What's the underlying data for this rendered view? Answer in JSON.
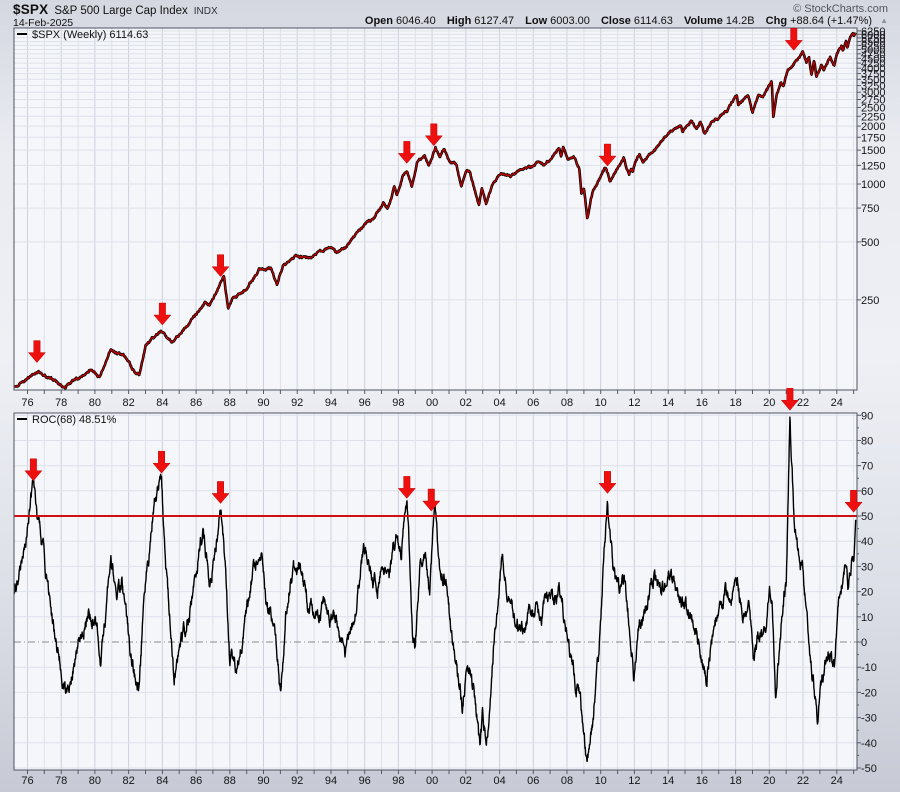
{
  "header": {
    "symbol": "$SPX",
    "name": "S&P 500 Large Cap Index",
    "exchange": "INDX",
    "date": "14-Feb-2025",
    "copyright": "© StockCharts.com",
    "quote": {
      "open_label": "Open",
      "open": "6046.40",
      "high_label": "High",
      "high": "6127.47",
      "low_label": "Low",
      "low": "6003.00",
      "close_label": "Close",
      "close": "6114.63",
      "volume_label": "Volume",
      "volume": "14.2B",
      "chg_label": "Chg",
      "chg": "+88.64 (+1.47%)",
      "chg_direction": "up",
      "arrow_glyph": "▲"
    }
  },
  "price_panel": {
    "legend": "$SPX (Weekly) 6114.63"
  },
  "roc_panel": {
    "legend": "ROC(68) 48.51%",
    "current_value": 48.51,
    "signal_level": 50
  },
  "colors": {
    "plot_bg": "#f5f6fa",
    "grid": "#dde1ea",
    "grid_strong": "#ccd1df",
    "border": "#4f5462",
    "price_outer": "#000000",
    "price_inner": "#cc0000",
    "roc_line": "#000000",
    "signal_line": "#cc1111",
    "zero_line": "#8a8a8a",
    "arrow": "#ee0f0f",
    "tick": "#555b66",
    "text": "#15151a"
  },
  "chart_data": [
    {
      "type": "line",
      "name": "$SPX Weekly close",
      "yscale": "log",
      "xlim": [
        1975.2,
        2025.2
      ],
      "ylim": [
        85,
        6470
      ],
      "yticks": [
        250,
        500,
        750,
        1000,
        1250,
        1500,
        1750,
        2000,
        2250,
        2500,
        2750,
        3000,
        3250,
        3500,
        3750,
        4000,
        4250,
        4500,
        4750,
        5000,
        5250,
        5500,
        5750,
        6000,
        6250
      ],
      "xtick_years": [
        1976,
        1978,
        1980,
        1982,
        1984,
        1986,
        1988,
        1990,
        1992,
        1994,
        1996,
        1998,
        2000,
        2002,
        2004,
        2006,
        2008,
        2010,
        2012,
        2014,
        2016,
        2018,
        2020,
        2022,
        2024
      ],
      "xtick_labels": [
        "76",
        "78",
        "80",
        "82",
        "84",
        "86",
        "88",
        "90",
        "92",
        "94",
        "96",
        "98",
        "00",
        "02",
        "04",
        "06",
        "08",
        "10",
        "12",
        "14",
        "16",
        "18",
        "20",
        "22",
        "24"
      ],
      "grid_years": [
        1976,
        2025
      ],
      "points": [
        [
          1975.2,
          88
        ],
        [
          1975.7,
          93
        ],
        [
          1976.1,
          99
        ],
        [
          1976.6,
          107
        ],
        [
          1977.2,
          99
        ],
        [
          1977.7,
          95
        ],
        [
          1978.25,
          87
        ],
        [
          1978.8,
          97
        ],
        [
          1979.3,
          101
        ],
        [
          1979.8,
          111
        ],
        [
          1980.28,
          100
        ],
        [
          1980.95,
          140
        ],
        [
          1981.3,
          131
        ],
        [
          1981.75,
          129
        ],
        [
          1982.2,
          110
        ],
        [
          1982.62,
          102
        ],
        [
          1983.0,
          145
        ],
        [
          1983.9,
          172
        ],
        [
          1984.55,
          148
        ],
        [
          1985.1,
          168
        ],
        [
          1985.9,
          205
        ],
        [
          1986.55,
          245
        ],
        [
          1986.8,
          235
        ],
        [
          1987.65,
          336
        ],
        [
          1987.9,
          224
        ],
        [
          1988.2,
          258
        ],
        [
          1988.9,
          278
        ],
        [
          1989.75,
          359
        ],
        [
          1990.45,
          368
        ],
        [
          1990.8,
          296
        ],
        [
          1991.15,
          375
        ],
        [
          1991.95,
          417
        ],
        [
          1992.7,
          412
        ],
        [
          1993.6,
          455
        ],
        [
          1994.1,
          480
        ],
        [
          1994.35,
          438
        ],
        [
          1994.9,
          461
        ],
        [
          1995.5,
          545
        ],
        [
          1996.05,
          620
        ],
        [
          1996.55,
          665
        ],
        [
          1997.1,
          790
        ],
        [
          1997.35,
          740
        ],
        [
          1997.75,
          955
        ],
        [
          1997.9,
          880
        ],
        [
          1998.25,
          1100
        ],
        [
          1998.5,
          1190
        ],
        [
          1998.8,
          960
        ],
        [
          1999.1,
          1300
        ],
        [
          1999.55,
          1420
        ],
        [
          1999.8,
          1250
        ],
        [
          2000.2,
          1527
        ],
        [
          2000.45,
          1360
        ],
        [
          2000.7,
          1520
        ],
        [
          2001.05,
          1300
        ],
        [
          2001.45,
          1250
        ],
        [
          2001.73,
          965
        ],
        [
          2002.0,
          1160
        ],
        [
          2002.25,
          1150
        ],
        [
          2002.78,
          776
        ],
        [
          2002.95,
          930
        ],
        [
          2003.2,
          800
        ],
        [
          2003.6,
          1000
        ],
        [
          2004.1,
          1150
        ],
        [
          2004.65,
          1100
        ],
        [
          2005.2,
          1200
        ],
        [
          2005.85,
          1230
        ],
        [
          2006.35,
          1290
        ],
        [
          2006.6,
          1240
        ],
        [
          2007.25,
          1440
        ],
        [
          2007.55,
          1553
        ],
        [
          2007.65,
          1411
        ],
        [
          2007.78,
          1565
        ],
        [
          2008.05,
          1330
        ],
        [
          2008.4,
          1400
        ],
        [
          2008.72,
          1200
        ],
        [
          2008.85,
          900
        ],
        [
          2009.0,
          930
        ],
        [
          2009.2,
          676
        ],
        [
          2009.55,
          940
        ],
        [
          2010.05,
          1120
        ],
        [
          2010.3,
          1217
        ],
        [
          2010.55,
          1030
        ],
        [
          2010.95,
          1185
        ],
        [
          2011.35,
          1363
        ],
        [
          2011.68,
          1120
        ],
        [
          2011.8,
          1190
        ],
        [
          2011.88,
          1140
        ],
        [
          2012.05,
          1290
        ],
        [
          2012.3,
          1420
        ],
        [
          2012.52,
          1310
        ],
        [
          2013.0,
          1460
        ],
        [
          2013.6,
          1650
        ],
        [
          2014.0,
          1840
        ],
        [
          2014.75,
          2010
        ],
        [
          2014.85,
          1880
        ],
        [
          2015.4,
          2120
        ],
        [
          2015.68,
          1870
        ],
        [
          2015.9,
          2100
        ],
        [
          2016.15,
          1829
        ],
        [
          2016.55,
          2100
        ],
        [
          2016.9,
          2180
        ],
        [
          2017.5,
          2430
        ],
        [
          2018.07,
          2873
        ],
        [
          2018.16,
          2580
        ],
        [
          2018.4,
          2720
        ],
        [
          2018.73,
          2930
        ],
        [
          2019.0,
          2351
        ],
        [
          2019.35,
          2900
        ],
        [
          2019.62,
          2850
        ],
        [
          2019.97,
          3240
        ],
        [
          2020.14,
          3386
        ],
        [
          2020.24,
          2237
        ],
        [
          2020.45,
          2950
        ],
        [
          2020.7,
          3400
        ],
        [
          2020.85,
          3270
        ],
        [
          2021.1,
          3900
        ],
        [
          2021.55,
          4350
        ],
        [
          2021.72,
          4550
        ],
        [
          2021.85,
          4620
        ],
        [
          2022.0,
          4796
        ],
        [
          2022.2,
          4250
        ],
        [
          2022.35,
          4580
        ],
        [
          2022.5,
          3670
        ],
        [
          2022.65,
          4300
        ],
        [
          2022.8,
          3577
        ],
        [
          2023.1,
          4150
        ],
        [
          2023.22,
          3950
        ],
        [
          2023.6,
          4580
        ],
        [
          2023.85,
          4120
        ],
        [
          2024.0,
          4770
        ],
        [
          2024.28,
          5250
        ],
        [
          2024.36,
          4960
        ],
        [
          2024.55,
          5660
        ],
        [
          2024.63,
          5190
        ],
        [
          2024.85,
          5870
        ],
        [
          2024.95,
          6090
        ],
        [
          2025.02,
          5850
        ],
        [
          2025.12,
          6114.63
        ]
      ],
      "arrows": [
        [
          1976.56,
          118
        ],
        [
          1984.0,
          185
        ],
        [
          1987.45,
          330
        ],
        [
          1998.5,
          1280
        ],
        [
          2000.1,
          1580
        ],
        [
          2010.4,
          1240
        ],
        [
          2021.45,
          4950
        ]
      ]
    },
    {
      "type": "line",
      "name": "ROC(68)",
      "yscale": "linear",
      "xlim": [
        1975.2,
        2025.2
      ],
      "ylim": [
        -50.8,
        90.9
      ],
      "yticks": [
        90,
        80,
        70,
        60,
        50,
        40,
        30,
        20,
        10,
        0,
        -10,
        -20,
        -30,
        -40,
        -50
      ],
      "signal_line": {
        "value": 50,
        "color": "#cc1111"
      },
      "zero_line": {
        "value": 0,
        "style": "dash-dot",
        "color": "#8a8a8a"
      },
      "points": [
        [
          1975.2,
          18
        ],
        [
          1975.6,
          30
        ],
        [
          1976.0,
          45
        ],
        [
          1976.35,
          62
        ],
        [
          1976.6,
          48
        ],
        [
          1976.9,
          38
        ],
        [
          1977.3,
          15
        ],
        [
          1977.8,
          -5
        ],
        [
          1978.3,
          -19
        ],
        [
          1978.75,
          -8
        ],
        [
          1979.1,
          4
        ],
        [
          1979.6,
          10
        ],
        [
          1980.1,
          6
        ],
        [
          1980.35,
          -5
        ],
        [
          1980.95,
          32
        ],
        [
          1981.3,
          18
        ],
        [
          1981.6,
          24
        ],
        [
          1982.1,
          -6
        ],
        [
          1982.6,
          -20
        ],
        [
          1982.95,
          18
        ],
        [
          1983.5,
          55
        ],
        [
          1983.95,
          65
        ],
        [
          1984.2,
          30
        ],
        [
          1984.7,
          -15
        ],
        [
          1985.1,
          -2
        ],
        [
          1985.6,
          12
        ],
        [
          1986.1,
          32
        ],
        [
          1986.4,
          42
        ],
        [
          1986.85,
          24
        ],
        [
          1987.1,
          36
        ],
        [
          1987.45,
          53
        ],
        [
          1987.75,
          30
        ],
        [
          1988.0,
          -8
        ],
        [
          1988.4,
          -12
        ],
        [
          1988.9,
          8
        ],
        [
          1989.4,
          26
        ],
        [
          1989.85,
          34
        ],
        [
          1990.2,
          14
        ],
        [
          1990.65,
          8
        ],
        [
          1991.0,
          -18
        ],
        [
          1991.3,
          8
        ],
        [
          1991.6,
          26
        ],
        [
          1992.05,
          33
        ],
        [
          1992.6,
          14
        ],
        [
          1993.1,
          12
        ],
        [
          1993.7,
          17
        ],
        [
          1994.3,
          7
        ],
        [
          1994.9,
          -4
        ],
        [
          1995.4,
          14
        ],
        [
          1995.95,
          35
        ],
        [
          1996.45,
          29
        ],
        [
          1996.75,
          22
        ],
        [
          1997.05,
          34
        ],
        [
          1997.45,
          27
        ],
        [
          1997.85,
          44
        ],
        [
          1998.15,
          38
        ],
        [
          1998.5,
          55
        ],
        [
          1998.85,
          5
        ],
        [
          1999.0,
          -2
        ],
        [
          1999.3,
          30
        ],
        [
          1999.65,
          34
        ],
        [
          1999.85,
          20
        ],
        [
          2000.15,
          50
        ],
        [
          2000.5,
          24
        ],
        [
          2000.85,
          28
        ],
        [
          2001.15,
          2
        ],
        [
          2001.45,
          -10
        ],
        [
          2001.8,
          -26
        ],
        [
          2002.05,
          -8
        ],
        [
          2002.35,
          -14
        ],
        [
          2002.85,
          -43
        ],
        [
          2003.0,
          -30
        ],
        [
          2003.2,
          -36
        ],
        [
          2003.4,
          -26
        ],
        [
          2003.7,
          2
        ],
        [
          2004.15,
          35
        ],
        [
          2004.6,
          16
        ],
        [
          2005.0,
          6
        ],
        [
          2005.5,
          6
        ],
        [
          2005.95,
          12
        ],
        [
          2006.4,
          9
        ],
        [
          2006.9,
          16
        ],
        [
          2007.3,
          17
        ],
        [
          2007.65,
          20
        ],
        [
          2007.95,
          6
        ],
        [
          2008.3,
          -10
        ],
        [
          2008.7,
          -18
        ],
        [
          2009.0,
          -42
        ],
        [
          2009.2,
          -48
        ],
        [
          2009.5,
          -36
        ],
        [
          2009.9,
          -4
        ],
        [
          2010.15,
          32
        ],
        [
          2010.4,
          57
        ],
        [
          2010.75,
          28
        ],
        [
          2011.05,
          20
        ],
        [
          2011.45,
          24
        ],
        [
          2011.95,
          -10
        ],
        [
          2012.3,
          6
        ],
        [
          2012.7,
          14
        ],
        [
          2013.1,
          26
        ],
        [
          2013.6,
          21
        ],
        [
          2014.05,
          28
        ],
        [
          2014.6,
          17
        ],
        [
          2015.0,
          14
        ],
        [
          2015.45,
          10
        ],
        [
          2015.9,
          0
        ],
        [
          2016.25,
          -12
        ],
        [
          2016.7,
          4
        ],
        [
          2017.0,
          13
        ],
        [
          2017.4,
          18
        ],
        [
          2017.9,
          21
        ],
        [
          2018.1,
          26
        ],
        [
          2018.4,
          11
        ],
        [
          2018.75,
          17
        ],
        [
          2019.05,
          -8
        ],
        [
          2019.4,
          6
        ],
        [
          2019.7,
          1
        ],
        [
          2020.0,
          21
        ],
        [
          2020.18,
          12
        ],
        [
          2020.38,
          -24
        ],
        [
          2020.75,
          12
        ],
        [
          2021.0,
          24
        ],
        [
          2021.22,
          90
        ],
        [
          2021.5,
          40
        ],
        [
          2021.75,
          32
        ],
        [
          2022.0,
          27
        ],
        [
          2022.25,
          6
        ],
        [
          2022.55,
          -14
        ],
        [
          2022.88,
          -31
        ],
        [
          2023.15,
          -16
        ],
        [
          2023.5,
          -6
        ],
        [
          2023.85,
          -10
        ],
        [
          2024.1,
          16
        ],
        [
          2024.45,
          31
        ],
        [
          2024.7,
          24
        ],
        [
          2024.9,
          33
        ],
        [
          2025.0,
          30
        ],
        [
          2025.12,
          48.51
        ]
      ],
      "arrows": [
        [
          1976.35,
          64
        ],
        [
          1983.95,
          67
        ],
        [
          1987.45,
          55
        ],
        [
          1998.5,
          57
        ],
        [
          1999.95,
          52
        ],
        [
          2010.4,
          59
        ],
        [
          2021.22,
          92
        ],
        [
          2025.0,
          51.5
        ]
      ]
    }
  ]
}
